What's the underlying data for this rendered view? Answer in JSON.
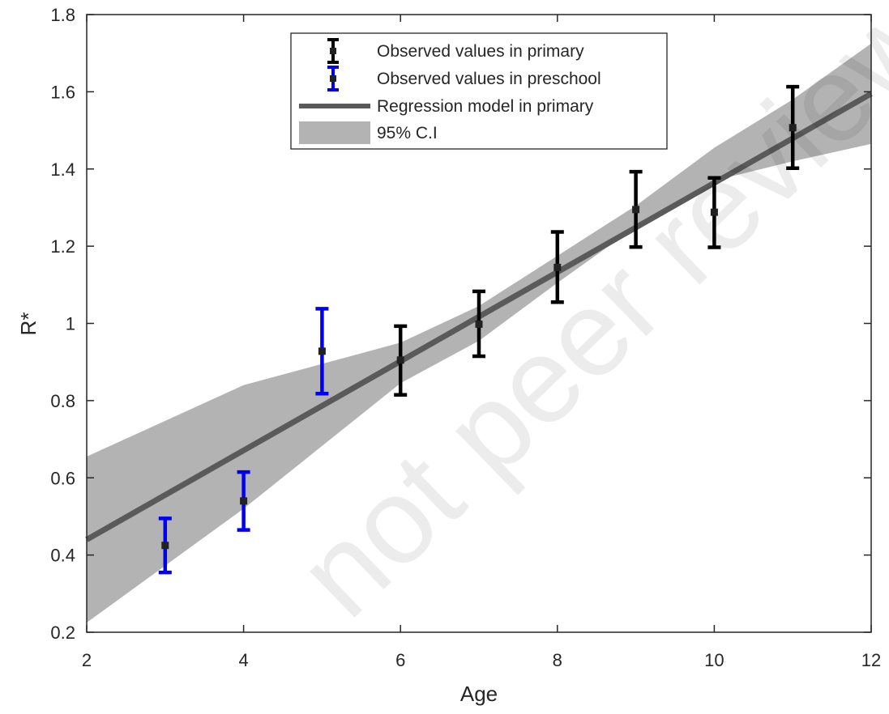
{
  "chart_data": {
    "type": "scatter",
    "title": "",
    "xlabel": "Age",
    "ylabel": "R*",
    "xlim": [
      2,
      12
    ],
    "ylim": [
      0.2,
      1.8
    ],
    "xticks": [
      2,
      4,
      6,
      8,
      10,
      12
    ],
    "yticks": [
      0.2,
      0.4,
      0.6,
      0.8,
      1.0,
      1.2,
      1.4,
      1.6,
      1.8
    ],
    "ytick_labels": [
      "0.2",
      "0.4",
      "0.6",
      "0.8",
      "1",
      "1.2",
      "1.4",
      "1.6",
      "1.8"
    ],
    "grid": false,
    "legend_position": "top-center",
    "series": [
      {
        "name": "Observed values in primary",
        "kind": "errorbar",
        "color": "#000000",
        "points": [
          {
            "x": 6,
            "y": 0.905,
            "lo": 0.815,
            "hi": 0.993
          },
          {
            "x": 7,
            "y": 0.998,
            "lo": 0.915,
            "hi": 1.083
          },
          {
            "x": 8,
            "y": 1.145,
            "lo": 1.055,
            "hi": 1.237
          },
          {
            "x": 9,
            "y": 1.295,
            "lo": 1.198,
            "hi": 1.393
          },
          {
            "x": 10,
            "y": 1.288,
            "lo": 1.197,
            "hi": 1.377
          },
          {
            "x": 11,
            "y": 1.507,
            "lo": 1.402,
            "hi": 1.613
          }
        ]
      },
      {
        "name": "Observed values in preschool",
        "kind": "errorbar",
        "color": "#0000ee",
        "points": [
          {
            "x": 3,
            "y": 0.425,
            "lo": 0.355,
            "hi": 0.495
          },
          {
            "x": 4,
            "y": 0.54,
            "lo": 0.465,
            "hi": 0.615
          },
          {
            "x": 5,
            "y": 0.928,
            "lo": 0.818,
            "hi": 1.038
          }
        ]
      },
      {
        "name": "Regression model in primary",
        "kind": "line",
        "color": "#5a5a5a",
        "x": [
          2,
          12
        ],
        "y": [
          0.44,
          1.595
        ]
      },
      {
        "name": "95% C.I",
        "kind": "band",
        "color": "#b3b3b3",
        "x": [
          2,
          4,
          6,
          7,
          8,
          9,
          10,
          11,
          12
        ],
        "lower": [
          0.225,
          0.52,
          0.845,
          0.955,
          1.105,
          1.25,
          1.37,
          1.42,
          1.465
        ],
        "upper": [
          0.655,
          0.84,
          0.95,
          1.045,
          1.175,
          1.305,
          1.455,
          1.58,
          1.725
        ]
      }
    ]
  },
  "watermark": {
    "text": "not peer reviewed"
  }
}
